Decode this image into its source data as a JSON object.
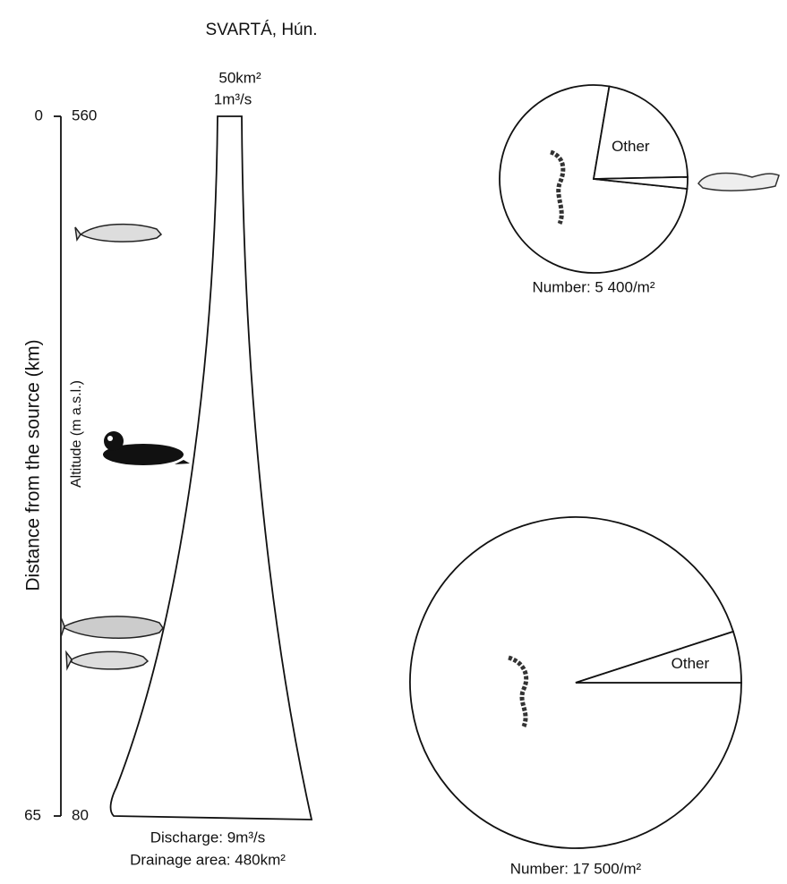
{
  "title": "SVARTÁ, Hún.",
  "profile": {
    "distance_label": "Distance from the source (km)",
    "altitude_label": "Altitude (m a.s.l.)",
    "distance_top": "0",
    "distance_bottom": "65",
    "altitude_top": "560",
    "altitude_bottom": "80",
    "top_area": "50km²",
    "top_discharge": "1m³/s",
    "bottom_discharge": "Discharge: 9m³/s",
    "bottom_area": "Drainage area: 480km²"
  },
  "chart_data": [
    {
      "type": "pie",
      "subtitle": "Number: 5 400/m²",
      "categories": [
        null,
        "Other",
        null
      ],
      "values": [
        76,
        22,
        2
      ]
    },
    {
      "type": "pie",
      "subtitle": "Number: 17 500/m²",
      "categories": [
        null,
        "Other"
      ],
      "values": [
        95,
        5
      ]
    }
  ]
}
